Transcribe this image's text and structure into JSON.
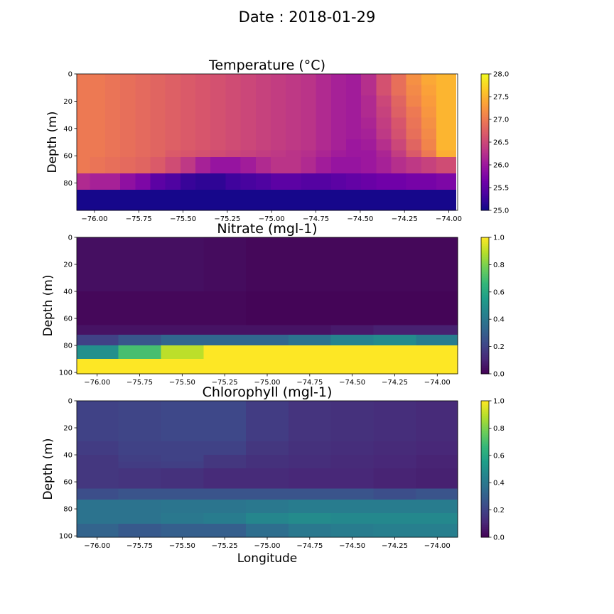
{
  "figure": {
    "suptitle": "Date : 2018-01-29"
  },
  "chart_data": [
    {
      "type": "heatmap",
      "title": "Temperature (°C)",
      "xlabel": "",
      "ylabel": "Depth (m)",
      "colormap": "plasma",
      "xlim": [
        -76.1,
        -73.95
      ],
      "ylim": [
        100,
        0
      ],
      "xticks": [
        -76.0,
        -75.75,
        -75.5,
        -75.25,
        -75.0,
        -74.75,
        -74.5,
        -74.25,
        -74.0
      ],
      "xtick_labels": [
        "−76.00",
        "−75.75",
        "−75.50",
        "−75.25",
        "−75.00",
        "−74.75",
        "−74.50",
        "−74.25",
        "−74.00"
      ],
      "yticks": [
        0,
        20,
        40,
        60,
        80
      ],
      "ytick_labels": [
        "0",
        "20",
        "40",
        "60",
        "80"
      ],
      "x_edges": [
        -76.1,
        -76.025,
        -75.94,
        -75.855,
        -75.77,
        -75.685,
        -75.6,
        -75.515,
        -75.43,
        -75.345,
        -75.26,
        -75.175,
        -75.09,
        -75.005,
        -74.92,
        -74.835,
        -74.75,
        -74.665,
        -74.58,
        -74.495,
        -74.41,
        -74.325,
        -74.24,
        -74.155,
        -74.07,
        -73.96
      ],
      "depth_edges": [
        0,
        8,
        16,
        24,
        32,
        40,
        48,
        56,
        61,
        73,
        85,
        100
      ],
      "vmin": 25.0,
      "vmax": 28.0,
      "colorbar_ticks": [
        25.0,
        25.5,
        26.0,
        26.5,
        27.0,
        27.5,
        28.0
      ],
      "colorbar_labels": [
        "25.0",
        "25.5",
        "26.0",
        "26.5",
        "27.0",
        "27.5",
        "28.0"
      ],
      "values": [
        [
          27.0,
          27.0,
          26.95,
          26.9,
          26.85,
          26.8,
          26.75,
          26.7,
          26.65,
          26.6,
          26.55,
          26.5,
          26.45,
          26.4,
          26.35,
          26.3,
          26.2,
          26.1,
          26.05,
          26.25,
          26.6,
          26.9,
          27.2,
          27.4,
          27.5
        ],
        [
          27.0,
          27.0,
          26.95,
          26.9,
          26.85,
          26.8,
          26.75,
          26.7,
          26.65,
          26.6,
          26.55,
          26.5,
          26.45,
          26.4,
          26.35,
          26.3,
          26.2,
          26.1,
          26.05,
          26.25,
          26.6,
          26.9,
          27.15,
          27.35,
          27.5
        ],
        [
          27.0,
          27.0,
          26.95,
          26.9,
          26.85,
          26.8,
          26.75,
          26.7,
          26.65,
          26.6,
          26.55,
          26.5,
          26.45,
          26.4,
          26.35,
          26.3,
          26.2,
          26.1,
          26.05,
          26.2,
          26.5,
          26.8,
          27.1,
          27.3,
          27.5
        ],
        [
          27.0,
          27.0,
          26.95,
          26.9,
          26.85,
          26.8,
          26.75,
          26.7,
          26.65,
          26.6,
          26.55,
          26.5,
          26.45,
          26.4,
          26.35,
          26.3,
          26.2,
          26.1,
          26.05,
          26.2,
          26.45,
          26.75,
          27.0,
          27.25,
          27.5
        ],
        [
          27.0,
          27.0,
          26.95,
          26.9,
          26.85,
          26.8,
          26.75,
          26.7,
          26.65,
          26.6,
          26.55,
          26.5,
          26.45,
          26.4,
          26.35,
          26.3,
          26.2,
          26.1,
          26.05,
          26.15,
          26.4,
          26.65,
          26.95,
          27.2,
          27.5
        ],
        [
          27.0,
          27.0,
          26.95,
          26.9,
          26.85,
          26.8,
          26.75,
          26.7,
          26.65,
          26.6,
          26.55,
          26.5,
          26.45,
          26.4,
          26.35,
          26.3,
          26.2,
          26.1,
          26.05,
          26.1,
          26.35,
          26.6,
          26.9,
          27.15,
          27.5
        ],
        [
          27.0,
          27.0,
          26.95,
          26.9,
          26.85,
          26.8,
          26.75,
          26.7,
          26.65,
          26.6,
          26.55,
          26.5,
          26.45,
          26.4,
          26.35,
          26.3,
          26.2,
          26.1,
          26.0,
          26.05,
          26.25,
          26.5,
          26.8,
          27.1,
          27.5
        ],
        [
          27.0,
          27.0,
          26.95,
          26.9,
          26.85,
          26.8,
          26.7,
          26.65,
          26.6,
          26.55,
          26.5,
          26.45,
          26.4,
          26.35,
          26.3,
          26.25,
          26.15,
          26.05,
          26.0,
          26.0,
          26.15,
          26.4,
          26.7,
          27.0,
          27.45
        ],
        [
          27.0,
          26.95,
          26.9,
          26.85,
          26.8,
          26.7,
          26.55,
          26.35,
          26.1,
          25.95,
          25.95,
          26.05,
          26.2,
          26.3,
          26.3,
          26.2,
          26.05,
          25.95,
          25.95,
          26.0,
          26.1,
          26.25,
          26.35,
          26.45,
          26.55
        ],
        [
          26.2,
          26.1,
          26.1,
          25.9,
          25.75,
          25.5,
          25.4,
          25.25,
          25.2,
          25.2,
          25.3,
          25.35,
          25.4,
          25.5,
          25.5,
          25.45,
          25.45,
          25.5,
          25.55,
          25.6,
          25.65,
          25.65,
          25.7,
          25.7,
          25.75
        ],
        [
          25.05,
          25.05,
          25.05,
          25.05,
          25.05,
          25.05,
          25.05,
          25.05,
          25.05,
          25.05,
          25.05,
          25.05,
          25.05,
          25.05,
          25.05,
          25.05,
          25.05,
          25.05,
          25.05,
          25.05,
          25.05,
          25.05,
          25.05,
          25.05,
          25.05
        ]
      ]
    },
    {
      "type": "heatmap",
      "title": "Nitrate (mgl-1)",
      "xlabel": "",
      "ylabel": "Depth (m)",
      "colormap": "viridis",
      "xlim": [
        -76.12,
        -73.88
      ],
      "ylim": [
        101,
        0
      ],
      "xticks": [
        -76.0,
        -75.75,
        -75.5,
        -75.25,
        -75.0,
        -74.75,
        -74.5,
        -74.25,
        -74.0
      ],
      "xtick_labels": [
        "−76.00",
        "−75.75",
        "−75.50",
        "−75.25",
        "−75.00",
        "−74.75",
        "−74.50",
        "−74.25",
        "−74.00"
      ],
      "yticks": [
        0,
        20,
        40,
        60,
        80,
        100
      ],
      "ytick_labels": [
        "0",
        "20",
        "40",
        "60",
        "80",
        "100"
      ],
      "x_edges": [
        -76.12,
        -75.875,
        -75.625,
        -75.375,
        -75.125,
        -74.875,
        -74.625,
        -74.375,
        -74.125,
        -73.88
      ],
      "depth_edges": [
        0,
        10,
        20,
        30,
        40,
        50,
        65,
        72,
        80,
        90,
        101
      ],
      "vmin": 0.0,
      "vmax": 1.0,
      "colorbar_ticks": [
        0.0,
        0.2,
        0.4,
        0.6,
        0.8,
        1.0
      ],
      "colorbar_labels": [
        "0.0",
        "0.2",
        "0.4",
        "0.6",
        "0.8",
        "1.0"
      ],
      "values": [
        [
          0.04,
          0.04,
          0.04,
          0.03,
          0.02,
          0.02,
          0.02,
          0.02,
          0.02
        ],
        [
          0.04,
          0.04,
          0.04,
          0.03,
          0.02,
          0.02,
          0.02,
          0.02,
          0.02
        ],
        [
          0.04,
          0.04,
          0.04,
          0.03,
          0.02,
          0.02,
          0.02,
          0.02,
          0.02
        ],
        [
          0.04,
          0.04,
          0.04,
          0.03,
          0.02,
          0.02,
          0.02,
          0.02,
          0.02
        ],
        [
          0.02,
          0.02,
          0.02,
          0.02,
          0.01,
          0.01,
          0.01,
          0.01,
          0.01
        ],
        [
          0.02,
          0.02,
          0.02,
          0.02,
          0.01,
          0.01,
          0.01,
          0.01,
          0.01
        ],
        [
          0.05,
          0.05,
          0.05,
          0.05,
          0.05,
          0.05,
          0.07,
          0.09,
          0.09
        ],
        [
          0.2,
          0.27,
          0.33,
          0.33,
          0.33,
          0.38,
          0.45,
          0.48,
          0.42
        ],
        [
          0.5,
          0.7,
          0.9,
          1.0,
          1.0,
          1.0,
          1.0,
          1.0,
          1.0
        ],
        [
          1.0,
          1.0,
          1.0,
          1.0,
          1.0,
          1.0,
          1.0,
          1.0,
          1.0
        ]
      ]
    },
    {
      "type": "heatmap",
      "title": "Chlorophyll  (mgl-1)",
      "xlabel": "Longitude",
      "ylabel": "Depth (m)",
      "colormap": "viridis",
      "xlim": [
        -76.12,
        -73.88
      ],
      "ylim": [
        101,
        0
      ],
      "xticks": [
        -76.0,
        -75.75,
        -75.5,
        -75.25,
        -75.0,
        -74.75,
        -74.5,
        -74.25,
        -74.0
      ],
      "xtick_labels": [
        "−76.00",
        "−75.75",
        "−75.50",
        "−75.25",
        "−75.00",
        "−74.75",
        "−74.50",
        "−74.25",
        "−74.00"
      ],
      "yticks": [
        0,
        20,
        40,
        60,
        80,
        100
      ],
      "ytick_labels": [
        "0",
        "20",
        "40",
        "60",
        "80",
        "100"
      ],
      "x_edges": [
        -76.12,
        -75.875,
        -75.625,
        -75.375,
        -75.125,
        -74.875,
        -74.625,
        -74.375,
        -74.125,
        -73.88
      ],
      "depth_edges": [
        0,
        10,
        20,
        30,
        40,
        45,
        50,
        65,
        73,
        83,
        91,
        101
      ],
      "vmin": 0.0,
      "vmax": 1.0,
      "colorbar_ticks": [
        0.0,
        0.2,
        0.4,
        0.6,
        0.8,
        1.0
      ],
      "colorbar_labels": [
        "0.0",
        "0.2",
        "0.4",
        "0.6",
        "0.8",
        "1.0"
      ],
      "values": [
        [
          0.2,
          0.21,
          0.22,
          0.22,
          0.18,
          0.15,
          0.14,
          0.13,
          0.12
        ],
        [
          0.2,
          0.21,
          0.22,
          0.22,
          0.18,
          0.15,
          0.14,
          0.13,
          0.12
        ],
        [
          0.2,
          0.21,
          0.22,
          0.22,
          0.18,
          0.15,
          0.14,
          0.13,
          0.12
        ],
        [
          0.18,
          0.2,
          0.2,
          0.2,
          0.16,
          0.14,
          0.13,
          0.12,
          0.11
        ],
        [
          0.16,
          0.19,
          0.2,
          0.16,
          0.14,
          0.13,
          0.12,
          0.11,
          0.1
        ],
        [
          0.16,
          0.18,
          0.19,
          0.16,
          0.14,
          0.13,
          0.12,
          0.11,
          0.1
        ],
        [
          0.16,
          0.15,
          0.14,
          0.12,
          0.12,
          0.11,
          0.11,
          0.1,
          0.09
        ],
        [
          0.24,
          0.26,
          0.26,
          0.26,
          0.26,
          0.26,
          0.26,
          0.24,
          0.26
        ],
        [
          0.38,
          0.38,
          0.39,
          0.39,
          0.4,
          0.42,
          0.42,
          0.42,
          0.42
        ],
        [
          0.38,
          0.38,
          0.4,
          0.42,
          0.46,
          0.48,
          0.47,
          0.47,
          0.47
        ],
        [
          0.32,
          0.28,
          0.3,
          0.3,
          0.36,
          0.4,
          0.42,
          0.43,
          0.43
        ]
      ]
    }
  ]
}
